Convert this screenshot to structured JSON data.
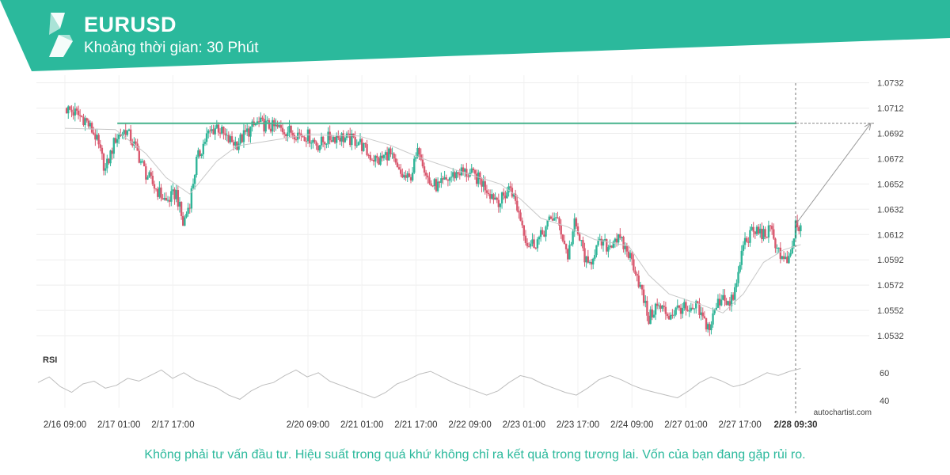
{
  "header": {
    "symbol": "EURUSD",
    "timeframe": "Khoảng thời gian: 30 Phút"
  },
  "colors": {
    "brand": "#2bb99c",
    "up": "#2fb598",
    "down": "#d9596f",
    "level": "#46b28c"
  },
  "disclaimer": "Không phải tư vấn đầu tư. Hiệu suất trong quá khứ không chỉ ra kết quả trong tương lai. Vốn của bạn đang gặp rủi ro.",
  "watermark": "autochartist.com",
  "chart_data": [
    {
      "type": "candlestick",
      "ylim": [
        1.0522,
        1.0738
      ],
      "y_ticks": [
        "1.0732",
        "1.0712",
        "1.0692",
        "1.0672",
        "1.0652",
        "1.0632",
        "1.0612",
        "1.0592",
        "1.0572",
        "1.0552",
        "1.0532"
      ],
      "x_ticks": [
        "2/16 09:00",
        "2/17 01:00",
        "2/17 17:00",
        "2/20 09:00",
        "2/21 01:00",
        "2/21 17:00",
        "2/22 09:00",
        "2/23 01:00",
        "2/23 17:00",
        "2/24 09:00",
        "2/27 01:00",
        "2/27 17:00",
        "2/28 09:30"
      ],
      "resistance_level": 1.07,
      "forecast": {
        "from": "2/28 09:30",
        "from_value": 1.062,
        "to_value": 1.07
      },
      "close_path": [
        [
          "2/16 09:00",
          1.0712
        ],
        [
          "2/16 12:00",
          1.0708
        ],
        [
          "2/16 15:00",
          1.0703
        ],
        [
          "2/16 18:00",
          1.069
        ],
        [
          "2/16 21:00",
          1.0663
        ],
        [
          "2/17 00:00",
          1.0688
        ],
        [
          "2/17 03:00",
          1.0695
        ],
        [
          "2/17 06:00",
          1.068
        ],
        [
          "2/17 09:00",
          1.066
        ],
        [
          "2/17 12:00",
          1.0648
        ],
        [
          "2/17 15:00",
          1.0638
        ],
        [
          "2/17 18:00",
          1.0645
        ],
        [
          "2/17 20:00",
          1.062
        ],
        [
          "2/17 22:00",
          1.0638
        ],
        [
          "2/18 00:00",
          1.067
        ],
        [
          "2/18 03:00",
          1.069
        ],
        [
          "2/18 06:00",
          1.0698
        ],
        [
          "2/18 09:00",
          1.0687
        ],
        [
          "2/18 12:00",
          1.0684
        ],
        [
          "2/18 15:00",
          1.0693
        ],
        [
          "2/18 18:00",
          1.07
        ],
        [
          "2/20 09:00",
          1.069
        ],
        [
          "2/20 12:00",
          1.0683
        ],
        [
          "2/20 15:00",
          1.0688
        ],
        [
          "2/20 18:00",
          1.069
        ],
        [
          "2/20 21:00",
          1.0687
        ],
        [
          "2/21 00:00",
          1.0686
        ],
        [
          "2/21 03:00",
          1.0675
        ],
        [
          "2/21 06:00",
          1.067
        ],
        [
          "2/21 09:00",
          1.0677
        ],
        [
          "2/21 12:00",
          1.066
        ],
        [
          "2/21 15:00",
          1.0655
        ],
        [
          "2/21 18:00",
          1.068
        ],
        [
          "2/21 21:00",
          1.0652
        ],
        [
          "2/22 00:00",
          1.065
        ],
        [
          "2/22 03:00",
          1.0657
        ],
        [
          "2/22 06:00",
          1.0662
        ],
        [
          "2/22 09:00",
          1.066
        ],
        [
          "2/22 12:00",
          1.0655
        ],
        [
          "2/22 15:00",
          1.0645
        ],
        [
          "2/22 18:00",
          1.0638
        ],
        [
          "2/22 21:00",
          1.065
        ],
        [
          "2/23 00:00",
          1.0625
        ],
        [
          "2/23 02:00",
          1.0605
        ],
        [
          "2/23 04:00",
          1.0605
        ],
        [
          "2/23 06:00",
          1.061
        ],
        [
          "2/23 08:00",
          1.062
        ],
        [
          "2/23 10:00",
          1.0627
        ],
        [
          "2/23 12:00",
          1.0615
        ],
        [
          "2/23 14:00",
          1.0595
        ],
        [
          "2/23 16:00",
          1.062
        ],
        [
          "2/23 18:00",
          1.0604
        ],
        [
          "2/23 20:00",
          1.0585
        ],
        [
          "2/23 22:00",
          1.06
        ],
        [
          "2/24 00:00",
          1.0605
        ],
        [
          "2/24 02:00",
          1.0602
        ],
        [
          "2/24 04:00",
          1.061
        ],
        [
          "2/24 06:00",
          1.0605
        ],
        [
          "2/24 08:00",
          1.0597
        ],
        [
          "2/24 10:00",
          1.0585
        ],
        [
          "2/24 12:00",
          1.0565
        ],
        [
          "2/24 14:00",
          1.0545
        ],
        [
          "2/24 16:00",
          1.0555
        ],
        [
          "2/24 18:00",
          1.0553
        ],
        [
          "2/24 20:00",
          1.0548
        ],
        [
          "2/24 22:00",
          1.0552
        ],
        [
          "2/27 00:00",
          1.0555
        ],
        [
          "2/27 02:00",
          1.0548
        ],
        [
          "2/27 04:00",
          1.0555
        ],
        [
          "2/27 06:00",
          1.0545
        ],
        [
          "2/27 08:00",
          1.0538
        ],
        [
          "2/27 10:00",
          1.0555
        ],
        [
          "2/27 12:00",
          1.0565
        ],
        [
          "2/27 14:00",
          1.0555
        ],
        [
          "2/27 16:00",
          1.0572
        ],
        [
          "2/27 18:00",
          1.0605
        ],
        [
          "2/27 20:00",
          1.0612
        ],
        [
          "2/27 22:00",
          1.0615
        ],
        [
          "2/28 00:00",
          1.0612
        ],
        [
          "2/28 02:00",
          1.0615
        ],
        [
          "2/28 04:00",
          1.0603
        ],
        [
          "2/28 06:00",
          1.059
        ],
        [
          "2/28 08:00",
          1.0592
        ],
        [
          "2/28 09:30",
          1.062
        ],
        [
          "2/28 11:00",
          1.0614
        ]
      ],
      "sma_path": [
        [
          "2/16 09:00",
          1.0696
        ],
        [
          "2/17 00:00",
          1.0695
        ],
        [
          "2/17 09:00",
          1.0676
        ],
        [
          "2/17 15:00",
          1.0657
        ],
        [
          "2/17 22:00",
          1.0644
        ],
        [
          "2/18 06:00",
          1.067
        ],
        [
          "2/18 12:00",
          1.0682
        ],
        [
          "2/20 09:00",
          1.0691
        ],
        [
          "2/21 00:00",
          1.069
        ],
        [
          "2/21 09:00",
          1.0683
        ],
        [
          "2/21 18:00",
          1.0673
        ],
        [
          "2/22 06:00",
          1.0662
        ],
        [
          "2/22 18:00",
          1.0652
        ],
        [
          "2/23 00:00",
          1.064
        ],
        [
          "2/23 06:00",
          1.0625
        ],
        [
          "2/23 14:00",
          1.0618
        ],
        [
          "2/23 22:00",
          1.0608
        ],
        [
          "2/24 08:00",
          1.0603
        ],
        [
          "2/24 14:00",
          1.058
        ],
        [
          "2/24 20:00",
          1.0565
        ],
        [
          "2/27 06:00",
          1.0556
        ],
        [
          "2/27 12:00",
          1.055
        ],
        [
          "2/27 18:00",
          1.0565
        ],
        [
          "2/28 00:00",
          1.059
        ],
        [
          "2/28 06:00",
          1.06
        ],
        [
          "2/28 11:00",
          1.0604
        ]
      ]
    },
    {
      "type": "line",
      "title": "RSI",
      "ylim": [
        35,
        65
      ],
      "y_ticks": [
        "60",
        "40"
      ],
      "values": [
        53,
        57,
        50,
        46,
        52,
        54,
        49,
        51,
        56,
        54,
        58,
        62,
        56,
        60,
        55,
        52,
        49,
        44,
        41,
        47,
        51,
        53,
        58,
        62,
        57,
        60,
        54,
        51,
        48,
        45,
        42,
        46,
        52,
        55,
        59,
        61,
        57,
        53,
        50,
        47,
        44,
        47,
        53,
        58,
        56,
        52,
        49,
        46,
        44,
        49,
        55,
        58,
        55,
        51,
        48,
        46,
        44,
        42,
        47,
        53,
        57,
        54,
        50,
        52,
        56,
        60,
        58,
        61,
        63
      ]
    }
  ]
}
